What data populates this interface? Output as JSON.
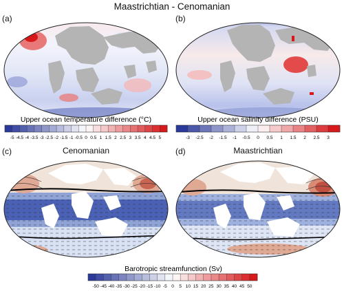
{
  "figure": {
    "title": "Maastrichtian - Cenomanian"
  },
  "panels": {
    "a": {
      "label": "(a)"
    },
    "b": {
      "label": "(b)"
    },
    "c": {
      "label": "(c)",
      "title": "Cenomanian"
    },
    "d": {
      "label": "(d)",
      "title": "Maastrichtian"
    }
  },
  "colorbars": {
    "temp": {
      "title": "Upper ocean temperature difference (°C)",
      "ticks": [
        "-5",
        "-4.5",
        "-4",
        "-3.5",
        "-3",
        "-2.5",
        "-2",
        "-1.5",
        "-1",
        "-0.5",
        "0",
        "0.5",
        "1",
        "1.5",
        "2",
        "2.5",
        "3",
        "3.5",
        "4",
        "4.5",
        "5"
      ]
    },
    "salt": {
      "title": "Upper ocean salinity difference (PSU)",
      "ticks": [
        "-3",
        "-2.5",
        "-2",
        "-1.5",
        "-1",
        "-0.5",
        "0",
        "0.5",
        "1",
        "1.5",
        "2",
        "2.5",
        "3"
      ]
    },
    "stream": {
      "title": "Barotropic streamfunction (Sv)",
      "ticks": [
        "-50",
        "-45",
        "-40",
        "-35",
        "-30",
        "-25",
        "-20",
        "-15",
        "-10",
        "-5",
        "0",
        "5",
        "10",
        "15",
        "20",
        "25",
        "30",
        "35",
        "40",
        "45",
        "50"
      ]
    }
  },
  "colors": {
    "land": "#b4b4b4",
    "blue_deep": "#2b3a9a",
    "red_deep": "#d7191c",
    "neutral": "#ffffff"
  }
}
